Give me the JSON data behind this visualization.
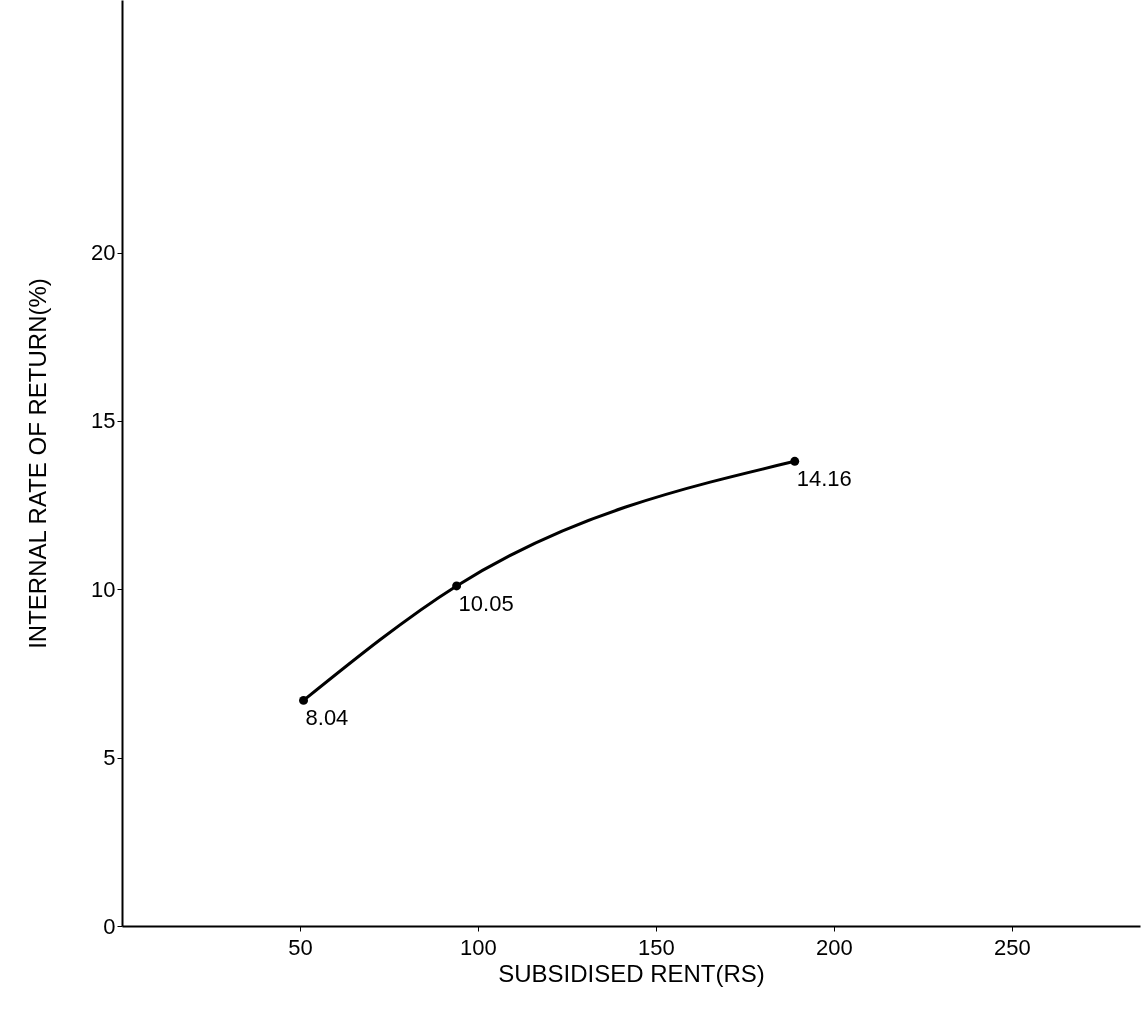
{
  "chart_data": {
    "type": "line",
    "xlabel": "SUBSIDISED RENT(RS)",
    "ylabel": "INTERNAL RATE OF RETURN(%)",
    "x": [
      51,
      94,
      189
    ],
    "series": [
      {
        "color": "#000000",
        "values": [
          6.7,
          10.1,
          13.8
        ]
      }
    ],
    "annotations": [
      {
        "text": "8.04",
        "x": 51,
        "y": 6.7
      },
      {
        "text": "10.05",
        "x": 94,
        "y": 10.1
      },
      {
        "text": "14.16",
        "x": 189,
        "y": 13.8
      }
    ],
    "xlim": [
      0,
      286
    ],
    "xticks": [
      50,
      100,
      150,
      200,
      250
    ],
    "ylim": [
      0,
      27.5
    ],
    "yticks": [
      0,
      5,
      10,
      15,
      20
    ],
    "grid": false,
    "marker": "circle",
    "line_style": "solid"
  }
}
